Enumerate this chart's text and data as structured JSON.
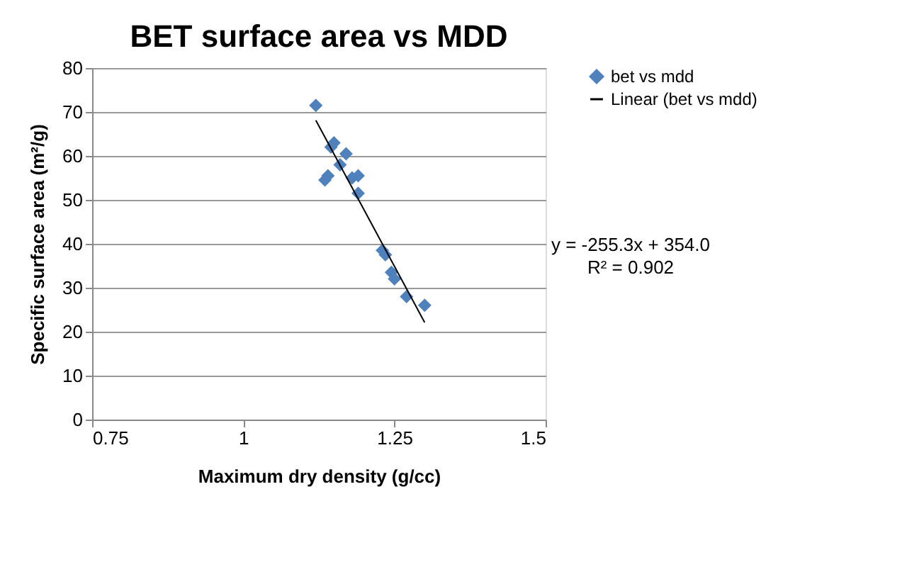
{
  "chart_data": {
    "type": "scatter",
    "title": "BET surface area vs MDD",
    "xlabel": "Maximum dry density (g/cc)",
    "ylabel": "Specific surface area (m²/g)",
    "xlim": [
      0.75,
      1.5
    ],
    "xticks": [
      0.75,
      1,
      1.25,
      1.5
    ],
    "ylim": [
      0,
      80
    ],
    "yticks": [
      0,
      10,
      20,
      30,
      40,
      50,
      60,
      70,
      80
    ],
    "grid": "y",
    "legend": "right",
    "series": [
      {
        "name": "bet vs mdd",
        "marker": "diamond",
        "color": "#4f81bd",
        "x": [
          1.12,
          1.15,
          1.145,
          1.17,
          1.16,
          1.14,
          1.135,
          1.18,
          1.19,
          1.19,
          1.23,
          1.235,
          1.245,
          1.25,
          1.27,
          1.3
        ],
        "values": [
          71.5,
          63,
          62,
          60.5,
          58,
          55.5,
          54.5,
          55,
          55.5,
          51.5,
          38.5,
          37.5,
          33.5,
          32,
          28,
          26
        ]
      },
      {
        "name": "Linear (bet vs mdd)",
        "type": "line",
        "color": "#000000",
        "x": [
          1.12,
          1.3
        ],
        "values": [
          68.1,
          22.1
        ]
      }
    ],
    "annotations": [
      "y = -255.3x + 354.0",
      "R² = 0.902"
    ]
  }
}
